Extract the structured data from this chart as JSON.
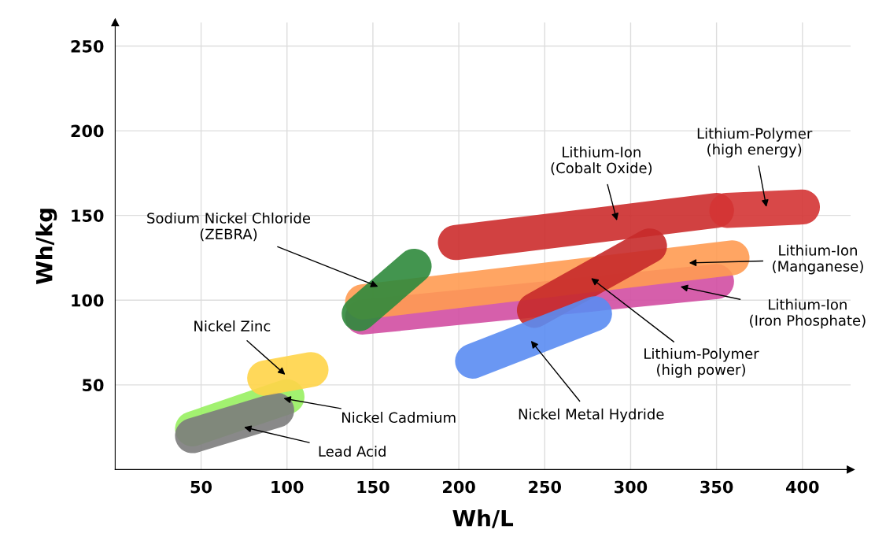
{
  "chart_data": {
    "type": "line",
    "xlabel": "Wh/L",
    "ylabel": "Wh/kg",
    "xlim": [
      0,
      428
    ],
    "ylim": [
      0,
      264
    ],
    "xticks": [
      50,
      100,
      150,
      200,
      250,
      300,
      350,
      400
    ],
    "yticks": [
      50,
      100,
      150,
      200,
      250
    ],
    "grid": true,
    "marker": "none",
    "line_style": "solid",
    "series": [
      {
        "color": "#d24ea2",
        "x": [
          144,
          350
        ],
        "values": [
          90,
          111
        ]
      },
      {
        "color": "#ff9b52",
        "x": [
          144,
          359
        ],
        "values": [
          99,
          125
        ]
      },
      {
        "color": "#cc2c2c",
        "x": [
          198,
          350
        ],
        "values": [
          134,
          153
        ]
      },
      {
        "color": "#d43434",
        "x": [
          356,
          400
        ],
        "values": [
          153,
          155
        ]
      },
      {
        "color": "#c62a2a",
        "x": [
          244,
          311
        ],
        "values": [
          94,
          132
        ]
      },
      {
        "color": "#2f8a3c",
        "x": [
          142,
          174
        ],
        "values": [
          92,
          120
        ]
      },
      {
        "color": "#5a8cf2",
        "x": [
          208,
          279
        ],
        "values": [
          64,
          92
        ]
      },
      {
        "color": "#98f060",
        "x": [
          45,
          100
        ],
        "values": [
          24,
          43
        ]
      },
      {
        "color": "#7c7c7c",
        "x": [
          45,
          94
        ],
        "values": [
          20,
          35
        ]
      },
      {
        "color": "#ffd448",
        "x": [
          87,
          114
        ],
        "values": [
          54,
          59
        ]
      }
    ],
    "annotations": [
      {
        "text": "Sodium Nickel Chloride\n(ZEBRA)",
        "x": 153,
        "y": 108
      },
      {
        "text": "Lithium-Ion\n(Cobalt Oxide)",
        "x": 292,
        "y": 147
      },
      {
        "text": "Lithium-Polymer\n(high energy)",
        "x": 379,
        "y": 155
      },
      {
        "text": "Lithium-Ion\n(Manganese)",
        "x": 334,
        "y": 122
      },
      {
        "text": "Lithium-Ion\n(Iron Phosphate)",
        "x": 329,
        "y": 108
      },
      {
        "text": "Lithium-Polymer\n(high power)",
        "x": 277,
        "y": 113
      },
      {
        "text": "Nickel Metal Hydride",
        "x": 242,
        "y": 76
      },
      {
        "text": "Nickel Zinc",
        "x": 99,
        "y": 56
      },
      {
        "text": "Nickel Cadmium",
        "x": 98,
        "y": 42
      },
      {
        "text": "Lead Acid",
        "x": 75,
        "y": 25
      }
    ]
  }
}
